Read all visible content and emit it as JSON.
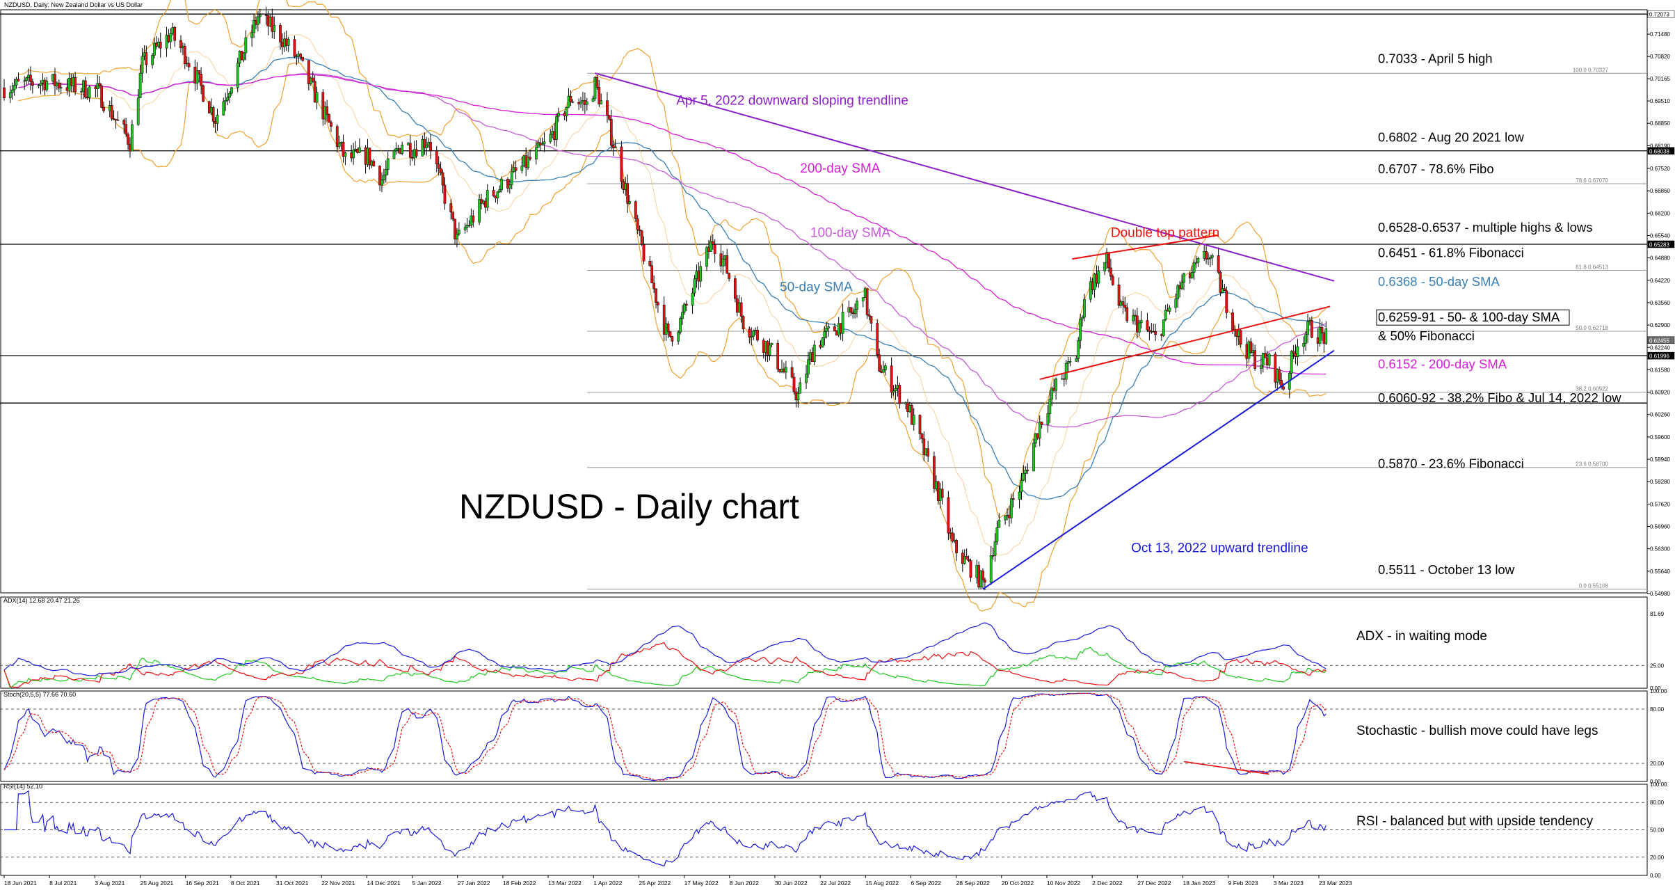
{
  "header": {
    "title": "NZDUSD, Daily: New Zealand Dollar vs US Dollar"
  },
  "chart_data": {
    "type": "candlestick",
    "title": "NZDUSD - Daily chart",
    "price_axis": {
      "ylim": [
        0.55,
        0.722
      ],
      "ticks": [
        "0.72073",
        "0.71480",
        "0.70820",
        "0.70165",
        "0.69510",
        "0.68850",
        "0.68190",
        "0.67520",
        "0.66860",
        "0.66200",
        "0.65540",
        "0.64880",
        "0.64220",
        "0.63560",
        "0.62900",
        "0.62240",
        "0.61580",
        "0.60920",
        "0.60260",
        "0.59600",
        "0.58940",
        "0.58280",
        "0.57620",
        "0.56960",
        "0.56300",
        "0.55640",
        "0.54980"
      ],
      "tags": [
        {
          "value": 0.72073,
          "label": "0.72073",
          "bg": "#ffffff",
          "fg": "#000000"
        },
        {
          "value": 0.68038,
          "label": "0.68038",
          "bg": "#000000",
          "fg": "#ffffff"
        },
        {
          "value": 0.65283,
          "label": "0.65283",
          "bg": "#000000",
          "fg": "#ffffff"
        },
        {
          "value": 0.62455,
          "label": "0.62455",
          "bg": "#6a6a6a",
          "fg": "#ffffff"
        },
        {
          "value": 0.61996,
          "label": "0.61996",
          "bg": "#000000",
          "fg": "#ffffff"
        }
      ]
    },
    "x_axis": {
      "labels": [
        "18 Jun 2021",
        "8 Jul 2021",
        "3 Aug 2021",
        "25 Aug 2021",
        "16 Sep 2021",
        "8 Oct 2021",
        "31 Oct 2021",
        "22 Nov 2021",
        "14 Dec 2021",
        "5 Jan 2022",
        "27 Jan 2022",
        "18 Feb 2022",
        "13 Mar 2022",
        "1 Apr 2022",
        "25 Apr 2022",
        "17 May 2022",
        "8 Jun 2022",
        "30 Jun 2022",
        "22 Jul 2022",
        "15 Aug 2022",
        "6 Sep 2022",
        "28 Sep 2022",
        "20 Oct 2022",
        "10 Nov 2022",
        "2 Dec 2022",
        "27 Dec 2022",
        "18 Jan 2023",
        "9 Feb 2023",
        "3 Mar 2023",
        "23 Mar 2023"
      ]
    },
    "price_anchors": [
      [
        "2021-06-18",
        0.699
      ],
      [
        "2021-07-08",
        0.701
      ],
      [
        "2021-08-03",
        0.698
      ],
      [
        "2021-08-19",
        0.683
      ],
      [
        "2021-08-25",
        0.706
      ],
      [
        "2021-09-08",
        0.715
      ],
      [
        "2021-09-16",
        0.708
      ],
      [
        "2021-09-30",
        0.69
      ],
      [
        "2021-10-08",
        0.701
      ],
      [
        "2021-10-21",
        0.72
      ],
      [
        "2021-10-31",
        0.715
      ],
      [
        "2021-11-10",
        0.707
      ],
      [
        "2021-11-22",
        0.692
      ],
      [
        "2021-12-03",
        0.678
      ],
      [
        "2021-12-14",
        0.679
      ],
      [
        "2021-12-21",
        0.672
      ],
      [
        "2021-12-31",
        0.683
      ],
      [
        "2022-01-05",
        0.681
      ],
      [
        "2022-01-13",
        0.684
      ],
      [
        "2022-01-27",
        0.654
      ],
      [
        "2022-02-10",
        0.666
      ],
      [
        "2022-02-18",
        0.67
      ],
      [
        "2022-03-01",
        0.676
      ],
      [
        "2022-03-13",
        0.683
      ],
      [
        "2022-03-24",
        0.696
      ],
      [
        "2022-04-01",
        0.694
      ],
      [
        "2022-04-05",
        0.7
      ],
      [
        "2022-04-12",
        0.687
      ],
      [
        "2022-04-25",
        0.658
      ],
      [
        "2022-05-11",
        0.625
      ],
      [
        "2022-05-17",
        0.63
      ],
      [
        "2022-06-02",
        0.654
      ],
      [
        "2022-06-08",
        0.647
      ],
      [
        "2022-06-17",
        0.63
      ],
      [
        "2022-06-30",
        0.622
      ],
      [
        "2022-07-14",
        0.608
      ],
      [
        "2022-07-22",
        0.623
      ],
      [
        "2022-08-11",
        0.633
      ],
      [
        "2022-08-15",
        0.64
      ],
      [
        "2022-08-22",
        0.618
      ],
      [
        "2022-09-06",
        0.605
      ],
      [
        "2022-09-22",
        0.578
      ],
      [
        "2022-09-28",
        0.564
      ],
      [
        "2022-10-13",
        0.553
      ],
      [
        "2022-10-20",
        0.568
      ],
      [
        "2022-11-01",
        0.582
      ],
      [
        "2022-11-10",
        0.6
      ],
      [
        "2022-11-18",
        0.611
      ],
      [
        "2022-11-28",
        0.62
      ],
      [
        "2022-12-02",
        0.638
      ],
      [
        "2022-12-13",
        0.648
      ],
      [
        "2022-12-20",
        0.633
      ],
      [
        "2022-12-27",
        0.63
      ],
      [
        "2023-01-06",
        0.625
      ],
      [
        "2023-01-18",
        0.64
      ],
      [
        "2023-02-01",
        0.65
      ],
      [
        "2023-02-09",
        0.637
      ],
      [
        "2023-02-17",
        0.624
      ],
      [
        "2023-02-24",
        0.619
      ],
      [
        "2023-03-03",
        0.618
      ],
      [
        "2023-03-10",
        0.611
      ],
      [
        "2023-03-17",
        0.624
      ],
      [
        "2023-03-23",
        0.628
      ],
      [
        "2023-03-31",
        0.625
      ]
    ],
    "overlay_labels": [
      {
        "text": "0.7033 - April 5 high",
        "color": "#000000",
        "price": 0.7063
      },
      {
        "text": "0.6802 - Aug 20 2021 low",
        "color": "#000000",
        "price": 0.6831
      },
      {
        "text": "0.6707 - 78.6% Fibo",
        "color": "#000000",
        "price": 0.6738
      },
      {
        "text": "0.6528-0.6537 - multiple highs & lows",
        "color": "#000000",
        "price": 0.6565
      },
      {
        "text": "0.6451 - 61.8% Fibonacci",
        "color": "#000000",
        "price": 0.649
      },
      {
        "text": "0.6368 - 50-day SMA",
        "color": "#3a7fb4",
        "price": 0.6405
      },
      {
        "text": "0.6259-91 - 50- & 100-day SMA",
        "color": "#000000",
        "price": 0.63
      },
      {
        "text": "& 50% Fibonacci",
        "color": "#000000",
        "price": 0.6245
      },
      {
        "text": "0.6152 - 200-day SMA",
        "color": "#d41fd4",
        "price": 0.6162
      },
      {
        "text": "0.6060-92 - 38.2% Fibo & Jul 14, 2022 low",
        "color": "#000000",
        "price": 0.6062
      },
      {
        "text": "0.5870 - 23.6% Fibonacci",
        "color": "#000000",
        "price": 0.5868
      },
      {
        "text": "0.5511 - October 13 low",
        "color": "#000000",
        "price": 0.5555
      }
    ],
    "chart_annotations": [
      {
        "text": "Apr 5, 2022 downward sloping trendline",
        "color": "#8b1fc9",
        "price": 0.694,
        "date": "2022-05-15"
      },
      {
        "text": "200-day SMA",
        "color": "#d41fd4",
        "price": 0.674,
        "date": "2022-07-15"
      },
      {
        "text": "100-day SMA",
        "color": "#c65bd8",
        "price": 0.655,
        "date": "2022-07-20"
      },
      {
        "text": "50-day SMA",
        "color": "#3a7fb4",
        "price": 0.639,
        "date": "2022-07-05"
      },
      {
        "text": "Double top pattern",
        "color": "#e81010",
        "price": 0.655,
        "date": "2022-12-15"
      },
      {
        "text": "Oct 13, 2022 upward trendline",
        "color": "#1a1ad6",
        "price": 0.562,
        "date": "2022-12-25"
      }
    ],
    "fibonacci": [
      {
        "level": "100.0",
        "price": 0.70327,
        "label": "100.0 0.70327"
      },
      {
        "level": "78.6",
        "price": 0.6707,
        "label": "78.6 0.67070"
      },
      {
        "level": "61.8",
        "price": 0.64513,
        "label": "61.8 0.64513"
      },
      {
        "level": "50.0",
        "price": 0.62718,
        "label": "50.0 0.62718"
      },
      {
        "level": "38.2",
        "price": 0.60922,
        "label": "38.2 0.60922"
      },
      {
        "level": "23.6",
        "price": 0.587,
        "label": "23.6 0.58700"
      },
      {
        "level": "0.0",
        "price": 0.55108,
        "label": "0.0 0.55108"
      }
    ],
    "horizontal_lines": [
      0.72073,
      0.70327,
      0.68038,
      0.6707,
      0.65283,
      0.64513,
      0.62718,
      0.61996,
      0.60922,
      0.606,
      0.587,
      0.55108
    ],
    "trendlines": [
      {
        "name": "Apr 5, 2022 downward sloping trendline",
        "color": "#8b1fc9",
        "from": [
          "2022-04-05",
          0.7033
        ],
        "to": [
          "2023-04-04",
          0.642
        ]
      },
      {
        "name": "Oct 13, 2022 upward trendline",
        "color": "#1a1ad6",
        "from": [
          "2022-10-13",
          0.5511
        ],
        "to": [
          "2023-04-04",
          0.6215
        ]
      },
      {
        "name": "double top lower",
        "color": "#e81010",
        "from": [
          "2022-11-10",
          0.613
        ],
        "to": [
          "2023-04-02",
          0.6345
        ]
      },
      {
        "name": "double top upper",
        "color": "#e81010",
        "from": [
          "2022-11-26",
          0.6485
        ],
        "to": [
          "2023-02-06",
          0.6555
        ]
      }
    ],
    "double_top_range": [
      "2022-11-26",
      "2023-02-06"
    ],
    "indicators": {
      "adx": {
        "title": "ADX(14) 12.68 20.47 21.26",
        "ylim": [
          0,
          100
        ],
        "ticks": [
          "81.69",
          "25.00",
          "0.00"
        ],
        "ref_level": 25,
        "label": "ADX - in waiting mode",
        "colors": {
          "adx": "#1a1ad6",
          "plus_di": "#1ec81e",
          "minus_di": "#e81010"
        }
      },
      "stochastic": {
        "title": "Stoch(20,5,5) 77.66 70.60",
        "ylim": [
          0,
          100
        ],
        "ticks": [
          "100.00",
          "80.00",
          "20.00",
          "0.00"
        ],
        "levels": [
          80,
          20
        ],
        "label": "Stochastic - bullish move could have legs",
        "colors": {
          "k": "#1a1ad6",
          "d": "#e81010"
        },
        "divergence": {
          "from": [
            "2023-01-20",
            22
          ],
          "to": [
            "2023-03-03",
            8
          ],
          "color": "#e81010"
        }
      },
      "rsi": {
        "title": "RSI(14) 52.10",
        "ylim": [
          0,
          100
        ],
        "ticks": [
          "100.00",
          "80.00",
          "50.00",
          "20.00",
          "0.00"
        ],
        "levels": [
          80,
          50,
          20
        ],
        "label": "RSI - balanced but with upside tendency",
        "color": "#1a1ad6"
      }
    },
    "colors": {
      "bull": "#1ec81e",
      "bear": "#e81010",
      "bollinger": "#f0a030",
      "sma50": "#3a7fb4",
      "sma100": "#c65bd8",
      "sma200": "#d41fd4"
    }
  }
}
